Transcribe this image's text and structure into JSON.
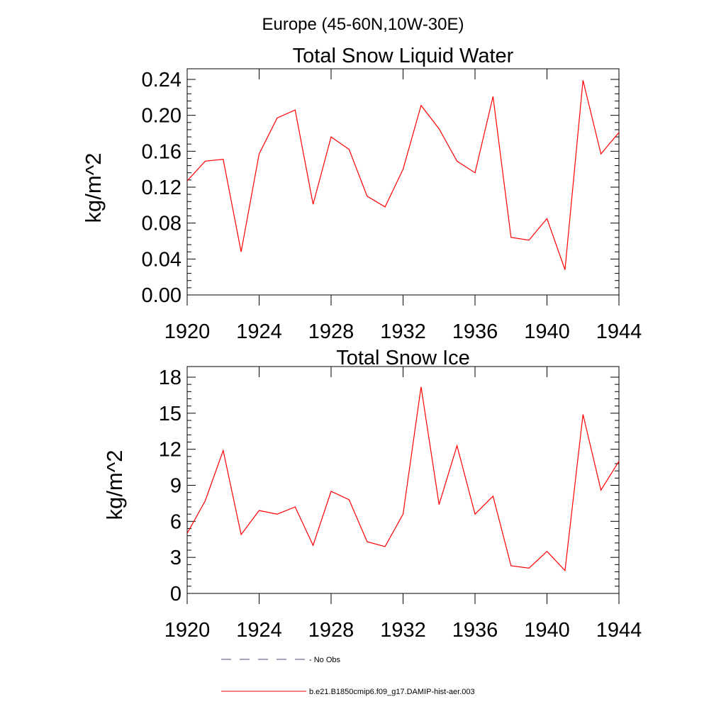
{
  "supertitle": "Europe (45-60N,10W-30E)",
  "legend": {
    "entries": [
      {
        "label": "No Obs",
        "color": "#4a4a80",
        "style": "dashed"
      },
      {
        "label": "b.e21.B1850cmip6.f09_g17.DAMIP-hist-aer.003",
        "color": "#ff0000",
        "style": "solid"
      }
    ]
  },
  "chart_data": [
    {
      "type": "line",
      "title": "Total Snow Liquid Water",
      "ylabel": "kg/m^2",
      "xlabel": "",
      "xlim": [
        1920,
        1944
      ],
      "ylim": [
        0,
        0.24
      ],
      "xticks": [
        1920,
        1924,
        1928,
        1932,
        1936,
        1940,
        1944
      ],
      "xtick_labels": [
        "1920",
        "1924",
        "1928",
        "1932",
        "1936",
        "1940",
        "1944"
      ],
      "yticks": [
        0,
        0.04,
        0.08,
        0.12,
        0.16,
        0.2,
        0.24
      ],
      "ytick_labels": [
        "0.00",
        "0.04",
        "0.08",
        "0.12",
        "0.16",
        "0.20",
        "0.24"
      ],
      "grid": false,
      "series": [
        {
          "color": "#ff0000",
          "x": [
            1920,
            1921,
            1922,
            1923,
            1924,
            1925,
            1926,
            1927,
            1928,
            1929,
            1930,
            1931,
            1932,
            1933,
            1934,
            1935,
            1936,
            1937,
            1938,
            1939,
            1940,
            1941,
            1942,
            1943,
            1944
          ],
          "y": [
            0.127,
            0.149,
            0.151,
            0.048,
            0.157,
            0.197,
            0.206,
            0.101,
            0.176,
            0.162,
            0.11,
            0.098,
            0.14,
            0.211,
            0.185,
            0.149,
            0.136,
            0.221,
            0.064,
            0.061,
            0.085,
            0.028,
            0.239,
            0.157,
            0.181
          ]
        }
      ]
    },
    {
      "type": "line",
      "title": "Total Snow Ice",
      "ylabel": "kg/m^2",
      "xlabel": "",
      "xlim": [
        1920,
        1944
      ],
      "ylim": [
        0,
        18
      ],
      "xticks": [
        1920,
        1924,
        1928,
        1932,
        1936,
        1940,
        1944
      ],
      "xtick_labels": [
        "1920",
        "1924",
        "1928",
        "1932",
        "1936",
        "1940",
        "1944"
      ],
      "yticks": [
        0,
        3,
        6,
        9,
        12,
        15,
        18
      ],
      "ytick_labels": [
        "0",
        "3",
        "6",
        "9",
        "12",
        "15",
        "18"
      ],
      "grid": false,
      "series": [
        {
          "color": "#ff0000",
          "x": [
            1920,
            1921,
            1922,
            1923,
            1924,
            1925,
            1926,
            1927,
            1928,
            1929,
            1930,
            1931,
            1932,
            1933,
            1934,
            1935,
            1936,
            1937,
            1938,
            1939,
            1940,
            1941,
            1942,
            1943,
            1944
          ],
          "y": [
            5.0,
            7.7,
            11.9,
            4.9,
            6.9,
            6.6,
            7.2,
            4.0,
            8.5,
            7.8,
            4.3,
            3.9,
            6.6,
            17.2,
            7.4,
            12.3,
            6.6,
            8.1,
            2.3,
            2.1,
            3.5,
            1.9,
            14.9,
            8.6,
            11.0
          ]
        }
      ]
    }
  ]
}
